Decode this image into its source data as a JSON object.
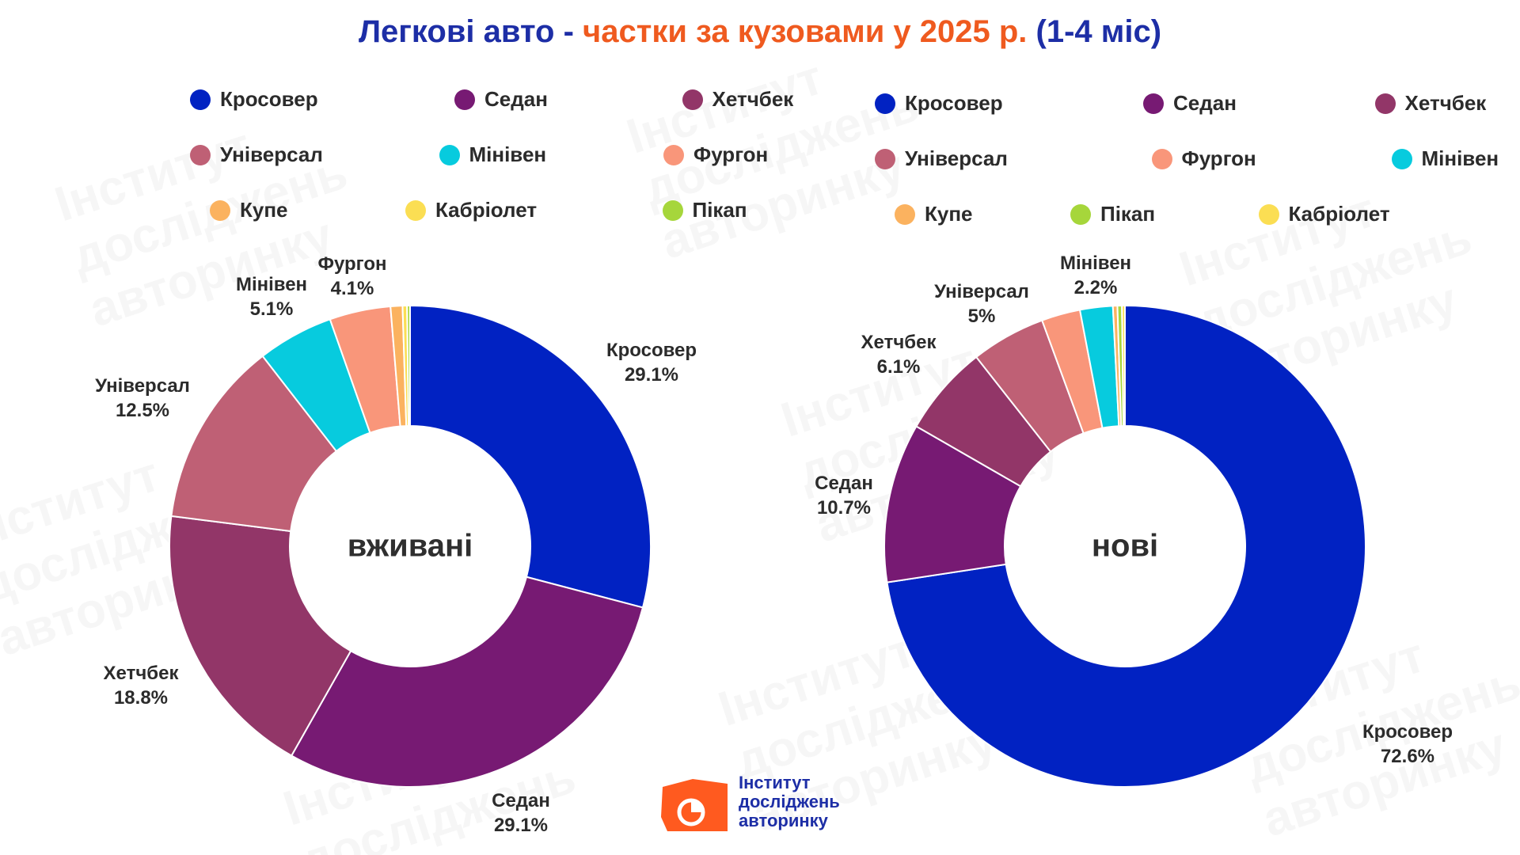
{
  "title": {
    "part1": "Легкові авто - ",
    "part2": "частки за кузовами у 2025 р.",
    "part3": " (1-4 міс)"
  },
  "colors": {
    "title_blue": "#1d2ea6",
    "title_orange": "#ef5a1f",
    "Кросовер": "#0122c2",
    "Седан": "#771a73",
    "Хетчбек": "#923668",
    "Універсал": "#bf6075",
    "Мінівен": "#07cbde",
    "Фургон": "#f9967a",
    "Купе": "#fbb25f",
    "Кабріолет": "#fbde53",
    "Пікап": "#a6d63b"
  },
  "chart_data": [
    {
      "type": "donut",
      "center_label": "вживані",
      "legend": [
        "Кросовер",
        "Седан",
        "Хетчбек",
        "Універсал",
        "Мінівен",
        "Фургон",
        "Купе",
        "Кабріолет",
        "Пікап"
      ],
      "slices": [
        {
          "label": "Кросовер",
          "value": 29.1,
          "value_label": "29.1%"
        },
        {
          "label": "Седан",
          "value": 29.1,
          "value_label": "29.1%"
        },
        {
          "label": "Хетчбек",
          "value": 18.8,
          "value_label": "18.8%"
        },
        {
          "label": "Універсал",
          "value": 12.5,
          "value_label": "12.5%"
        },
        {
          "label": "Мінівен",
          "value": 5.1,
          "value_label": "5.1%"
        },
        {
          "label": "Фургон",
          "value": 4.1,
          "value_label": "4.1%"
        },
        {
          "label": "Купе",
          "value": 0.8
        },
        {
          "label": "Кабріолет",
          "value": 0.3
        },
        {
          "label": "Пікап",
          "value": 0.2
        }
      ]
    },
    {
      "type": "donut",
      "center_label": "нові",
      "legend": [
        "Кросовер",
        "Седан",
        "Хетчбек",
        "Універсал",
        "Фургон",
        "Мінівен",
        "Купе",
        "Пікап",
        "Кабріолет"
      ],
      "slices": [
        {
          "label": "Кросовер",
          "value": 72.6,
          "value_label": "72.6%"
        },
        {
          "label": "Седан",
          "value": 10.7,
          "value_label": "10.7%"
        },
        {
          "label": "Хетчбек",
          "value": 6.1,
          "value_label": "6.1%"
        },
        {
          "label": "Універсал",
          "value": 5,
          "value_label": "5%"
        },
        {
          "label": "Фургон",
          "value": 2.6
        },
        {
          "label": "Мінівен",
          "value": 2.2,
          "value_label": "2.2%"
        },
        {
          "label": "Купе",
          "value": 0.3
        },
        {
          "label": "Пікап",
          "value": 0.3
        },
        {
          "label": "Кабріолет",
          "value": 0.2
        }
      ]
    }
  ],
  "logo": {
    "line1": "Інститут",
    "line2": "досліджень",
    "line3": "авторинку"
  }
}
